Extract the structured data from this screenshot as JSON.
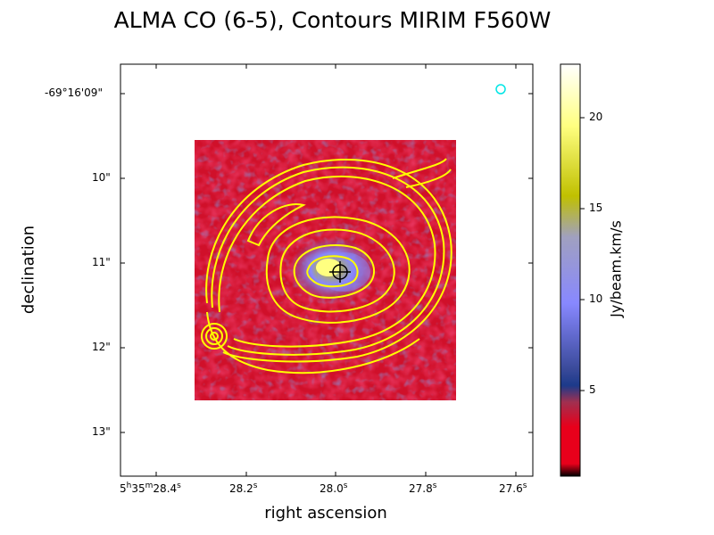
{
  "chart_data": {
    "type": "heatmap",
    "title": "ALMA CO (6-5), Contours MIRIM F560W",
    "xlabel": "right ascension",
    "ylabel": "declination",
    "x_ticks": [
      "5h35m28.4s",
      "28.2s",
      "28.0s",
      "27.8s",
      "27.6s"
    ],
    "x_tick_parts": [
      {
        "main": "5",
        "sup": "h",
        "main2": "35",
        "sup2": "m",
        "main3": "28.4",
        "sup3": "s"
      },
      {
        "main": "28.2",
        "sup": "s"
      },
      {
        "main": "28.0",
        "sup": "s"
      },
      {
        "main": "27.8",
        "sup": "s"
      },
      {
        "main": "27.6",
        "sup": "s"
      }
    ],
    "y_ticks": [
      "-69°16'09\"",
      "10\"",
      "11\"",
      "12\"",
      "13\""
    ],
    "colorbar": {
      "label": "Jy/beam.km/s",
      "range": [
        0,
        23
      ],
      "ticks": [
        5,
        10,
        15,
        20
      ],
      "colormap": [
        "#000000",
        "#e8001b",
        "#c8203a",
        "#3a2a8a",
        "#1c3a8a",
        "#6a6ab8",
        "#8888ff",
        "#a0a0d0",
        "#c0c000",
        "#ffff80",
        "#ffffff"
      ]
    },
    "source_marker": {
      "ra_label": "28.0s",
      "dec_label": "11\""
    },
    "beam_color": "#00e5e5",
    "contour_color": "#ffff00"
  }
}
